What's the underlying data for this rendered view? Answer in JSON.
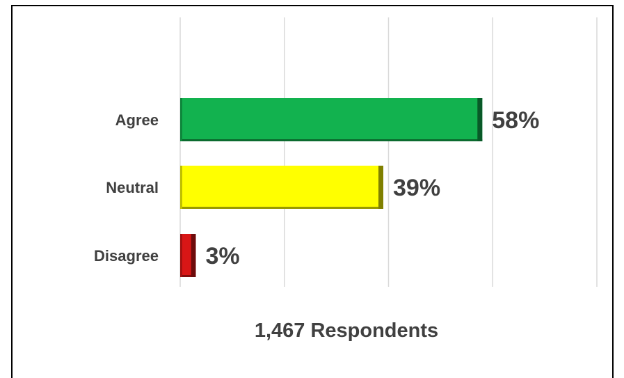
{
  "chart_data": {
    "type": "bar",
    "orientation": "horizontal",
    "categories": [
      "Agree",
      "Neutral",
      "Disagree"
    ],
    "values": [
      58,
      39,
      3
    ],
    "data_labels": [
      "58%",
      "39%",
      "3%"
    ],
    "colors": [
      "#12b24f",
      "#ffff00",
      "#d91616"
    ],
    "xlim": [
      0,
      80
    ],
    "gridlines": true,
    "legend": "none",
    "footer": "1,467 Respondents"
  }
}
